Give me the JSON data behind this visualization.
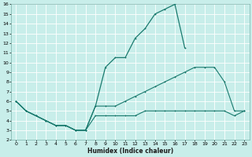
{
  "xlabel": "Humidex (Indice chaleur)",
  "xlim": [
    -0.5,
    23.5
  ],
  "ylim": [
    2,
    16
  ],
  "xticks": [
    0,
    1,
    2,
    3,
    4,
    5,
    6,
    7,
    8,
    9,
    10,
    11,
    12,
    13,
    14,
    15,
    16,
    17,
    18,
    19,
    20,
    21,
    22,
    23
  ],
  "yticks": [
    2,
    3,
    4,
    5,
    6,
    7,
    8,
    9,
    10,
    11,
    12,
    13,
    14,
    15,
    16
  ],
  "bg_color": "#c8eeea",
  "grid_color": "#ffffff",
  "line_color": "#1a7a6e",
  "lines": [
    {
      "x": [
        0,
        1,
        2,
        3,
        4,
        5,
        6,
        7,
        8,
        9,
        10,
        11,
        12,
        13,
        14,
        15,
        16,
        17
      ],
      "y": [
        6,
        5,
        4.5,
        4,
        3.5,
        3.5,
        3,
        3,
        5.5,
        9.5,
        10.5,
        10.5,
        12.5,
        13.5,
        15,
        15.5,
        16,
        11.5
      ],
      "linestyle": "-",
      "linewidth": 0.9,
      "markersize": 2.0
    },
    {
      "x": [
        0,
        1,
        2,
        3,
        4,
        5,
        6,
        7,
        8,
        9,
        10,
        11,
        12,
        13,
        14,
        15,
        16,
        17,
        18,
        19,
        20,
        21,
        22,
        23
      ],
      "y": [
        6,
        5,
        4.5,
        4,
        3.5,
        3.5,
        3,
        3,
        5.5,
        5.5,
        5.5,
        6,
        6.5,
        7,
        7.5,
        8,
        8.5,
        9,
        9.5,
        9.5,
        9.5,
        8,
        5,
        5
      ],
      "linestyle": "-",
      "linewidth": 0.8,
      "markersize": 1.5
    },
    {
      "x": [
        0,
        1,
        2,
        3,
        4,
        5,
        6,
        7,
        8,
        9,
        10,
        11,
        12,
        13,
        14,
        15,
        16,
        17,
        18,
        19,
        20,
        21,
        22,
        23
      ],
      "y": [
        6,
        5,
        4.5,
        4,
        3.5,
        3.5,
        3,
        3,
        4.5,
        4.5,
        4.5,
        4.5,
        4.5,
        5,
        5,
        5,
        5,
        5,
        5,
        5,
        5,
        5,
        4.5,
        5
      ],
      "linestyle": "-",
      "linewidth": 0.8,
      "markersize": 1.5
    }
  ]
}
